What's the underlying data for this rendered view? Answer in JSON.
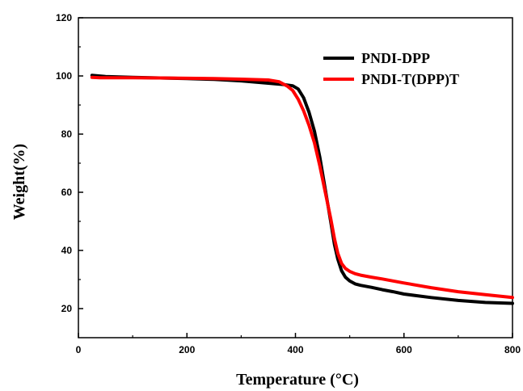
{
  "chart_data": {
    "type": "line",
    "title": "",
    "xlabel": "Temperature (°C)",
    "ylabel": "Weight(%)",
    "xlim": [
      0,
      800
    ],
    "ylim": [
      10,
      120
    ],
    "xticks": [
      0,
      200,
      400,
      600,
      800
    ],
    "yticks": [
      20,
      40,
      60,
      80,
      100,
      120
    ],
    "grid": false,
    "legend_position": "top-right",
    "series": [
      {
        "name": "PNDI-DPP",
        "color": "#000000",
        "x": [
          25,
          50,
          100,
          150,
          200,
          250,
          300,
          350,
          380,
          395,
          405,
          415,
          425,
          435,
          445,
          455,
          465,
          472,
          478,
          485,
          492,
          500,
          510,
          520,
          540,
          560,
          580,
          600,
          650,
          700,
          750,
          800
        ],
        "y": [
          100.2,
          99.8,
          99.5,
          99.3,
          99.1,
          98.8,
          98.3,
          97.5,
          97.0,
          96.6,
          95.5,
          92.5,
          87.5,
          81.0,
          72.0,
          61.0,
          50.0,
          42.0,
          37.0,
          33.0,
          30.8,
          29.5,
          28.5,
          28.0,
          27.3,
          26.5,
          25.8,
          25.0,
          23.8,
          22.8,
          22.1,
          21.8
        ]
      },
      {
        "name": "PNDI-T(DPP)T",
        "color": "#ff0000",
        "x": [
          25,
          40,
          100,
          150,
          200,
          250,
          300,
          350,
          370,
          385,
          395,
          405,
          415,
          425,
          435,
          445,
          455,
          465,
          472,
          478,
          485,
          492,
          500,
          510,
          520,
          540,
          560,
          580,
          600,
          650,
          700,
          750,
          800
        ],
        "y": [
          99.5,
          99.4,
          99.4,
          99.3,
          99.2,
          99.1,
          98.9,
          98.6,
          98.0,
          96.5,
          95.0,
          92.0,
          88.0,
          83.0,
          77.0,
          69.0,
          60.0,
          51.0,
          44.0,
          39.0,
          35.5,
          33.8,
          32.8,
          32.0,
          31.5,
          30.8,
          30.2,
          29.5,
          28.8,
          27.2,
          25.8,
          24.8,
          23.8
        ]
      }
    ]
  }
}
